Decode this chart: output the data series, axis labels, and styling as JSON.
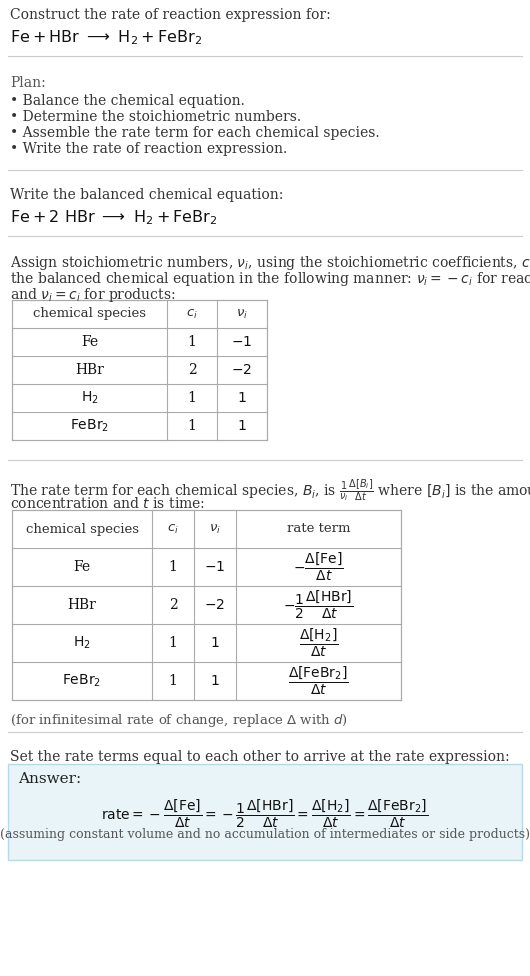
{
  "bg_color": "#ffffff",
  "text_color": "#000000",
  "gray_text": "#555555",
  "answer_bg": "#e8f4f8",
  "answer_border": "#b8d8e8",
  "title_line1": "Construct the rate of reaction expression for:",
  "plan_header": "Plan:",
  "plan_items": [
    "Balance the chemical equation.",
    "Determine the stoichiometric numbers.",
    "Assemble the rate term for each chemical species.",
    "Write the rate of reaction expression."
  ],
  "balanced_header": "Write the balanced chemical equation:",
  "stoich_intro1": "Assign stoichiometric numbers, $\\nu_i$, using the stoichiometric coefficients, $c_i$, from",
  "stoich_intro2": "the balanced chemical equation in the following manner: $\\nu_i = -c_i$ for reactants",
  "stoich_intro3": "and $\\nu_i = c_i$ for products:",
  "rate_intro1": "The rate term for each chemical species, $B_i$, is $\\frac{1}{\\nu_i}\\frac{\\Delta[B_i]}{\\Delta t}$ where $[B_i]$ is the amount",
  "rate_intro2": "concentration and $t$ is time:",
  "infinitesimal_note": "(for infinitesimal rate of change, replace $\\Delta$ with $d$)",
  "set_equal_text": "Set the rate terms equal to each other to arrive at the rate expression:",
  "answer_label": "Answer:",
  "answer_note": "(assuming constant volume and no accumulation of intermediates or side products)"
}
